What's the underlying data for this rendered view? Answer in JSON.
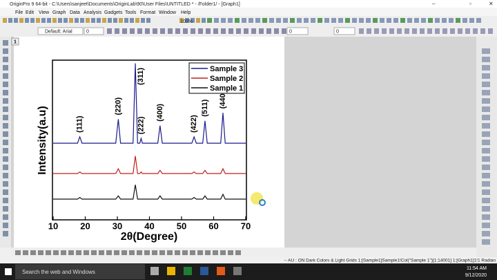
{
  "title_bar": "OriginPro 9 64-bit - C:\\Users\\sanjeet\\Documents\\OriginLab\\90\\User Files\\UNTITLED * - /Folder1/ - [Graph1]",
  "menu": [
    "File",
    "Edit",
    "View",
    "Graph",
    "Data",
    "Analysis",
    "Gadgets",
    "Tools",
    "Format",
    "Window",
    "Help"
  ],
  "toolbar": {
    "zoom": "100%",
    "font": "Default: Arial",
    "fields": [
      "0",
      "0",
      "0"
    ]
  },
  "page_tab": "1",
  "chart_data": {
    "type": "line",
    "xlabel": "2θ(Degree)",
    "ylabel": "Intensity(a.u)",
    "x": [
      10,
      17.6,
      18.3,
      19.0,
      29.5,
      30.3,
      31.0,
      34.9,
      35.6,
      36.3,
      37.0,
      37.4,
      37.8,
      42.6,
      43.3,
      44.0,
      53.2,
      53.9,
      54.6,
      56.6,
      57.3,
      58.0,
      62.2,
      62.9,
      63.6,
      70
    ],
    "series": [
      {
        "name": "Sample 3",
        "color": "#1a1a8c",
        "values": [
          48,
          48,
          52,
          48,
          48,
          63,
          48,
          48,
          98,
          48,
          48,
          51,
          48,
          48,
          59,
          48,
          48,
          52,
          48,
          48,
          62,
          48,
          48,
          67,
          48,
          48
        ]
      },
      {
        "name": "Sample 2",
        "color": "#c0201a",
        "values": [
          29,
          29,
          30,
          29,
          29,
          32,
          29,
          29,
          40,
          29,
          29,
          30,
          29,
          29,
          31,
          29,
          29,
          30,
          29,
          29,
          31,
          29,
          29,
          32,
          29,
          29
        ]
      },
      {
        "name": "Sample 1",
        "color": "#111111",
        "values": [
          13,
          13,
          14,
          13,
          13,
          15,
          13,
          13,
          22,
          13,
          13,
          13,
          13,
          13,
          15,
          13,
          13,
          14,
          13,
          13,
          15,
          13,
          13,
          16,
          13,
          13
        ]
      }
    ],
    "annotations": [
      {
        "text": "(111)",
        "x": 18.3
      },
      {
        "text": "(220)",
        "x": 30.3
      },
      {
        "text": "(311)",
        "x": 35.6
      },
      {
        "text": "(222)",
        "x": 37.4
      },
      {
        "text": "(400)",
        "x": 43.3
      },
      {
        "text": "(422)",
        "x": 53.9
      },
      {
        "text": "(511)",
        "x": 57.3
      },
      {
        "text": "(440)",
        "x": 62.9
      }
    ],
    "xlim": [
      10,
      70
    ],
    "xticks": [
      10,
      20,
      30,
      40,
      50,
      60,
      70
    ],
    "ylim": [
      0,
      100
    ],
    "legend": "upper right"
  },
  "status_bar": "-- AU : ON  Dark Colors & Light Grids  1:[Sample1]Sample1!Col(\"Sample 1\")[1:14001]  1:[Graph1]1!1  Radian",
  "taskbar": {
    "search": "Search the web and Windows",
    "time": "11:54 AM",
    "date": "9/12/2020"
  }
}
